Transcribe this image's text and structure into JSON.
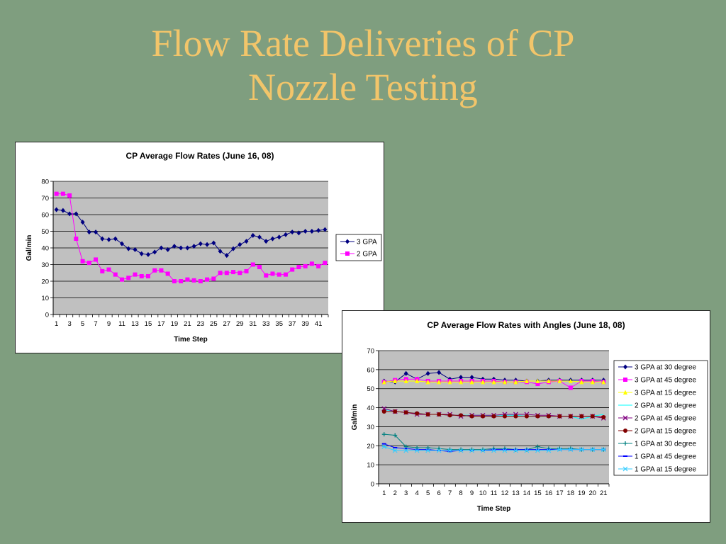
{
  "slide": {
    "title_line1": "Flow Rate Deliveries of CP",
    "title_line2": "Nozzle Testing"
  },
  "chart_data": [
    {
      "type": "line",
      "title": "CP Average Flow Rates (June 16, 08)",
      "xlabel": "Time Step",
      "ylabel": "Gal/min",
      "ylim": [
        0,
        80
      ],
      "yticks": [
        0,
        10,
        20,
        30,
        40,
        50,
        60,
        70,
        80
      ],
      "x": [
        1,
        2,
        3,
        4,
        5,
        6,
        7,
        8,
        9,
        10,
        11,
        12,
        13,
        14,
        15,
        16,
        17,
        18,
        19,
        20,
        21,
        22,
        23,
        24,
        25,
        26,
        27,
        28,
        29,
        30,
        31,
        32,
        33,
        34,
        35,
        36,
        37,
        38,
        39,
        40,
        41,
        42
      ],
      "xtick_labels": [
        "1",
        "3",
        "5",
        "7",
        "9",
        "11",
        "13",
        "15",
        "17",
        "19",
        "21",
        "23",
        "25",
        "27",
        "29",
        "31",
        "33",
        "35",
        "37",
        "39",
        "41"
      ],
      "grid": true,
      "legend_position": "right",
      "series": [
        {
          "name": "3 GPA",
          "color": "#000080",
          "marker": "diamond",
          "values": [
            63,
            62.5,
            60.5,
            60.5,
            55.5,
            49.5,
            49.5,
            45.5,
            45,
            45.5,
            42.5,
            39.5,
            39,
            36.5,
            36,
            37.5,
            40,
            39,
            41,
            40,
            40,
            41,
            42.5,
            42,
            43,
            38,
            35.5,
            39.5,
            42,
            44,
            47.5,
            46.5,
            44,
            45.5,
            46.5,
            48,
            49.5,
            49,
            50,
            50,
            50.5,
            51
          ]
        },
        {
          "name": "2 GPA",
          "color": "#ff00ff",
          "marker": "square",
          "values": [
            72.5,
            72.5,
            71.5,
            45.5,
            32,
            31,
            33,
            26,
            27,
            24,
            21,
            22,
            24,
            23,
            23,
            26.5,
            26.5,
            24.5,
            20,
            20,
            21,
            20.5,
            20,
            21,
            21.5,
            25,
            25,
            25.5,
            25,
            26,
            30,
            28.5,
            23.5,
            24.5,
            24,
            24,
            27,
            28.5,
            29,
            30.5,
            29,
            31
          ]
        }
      ]
    },
    {
      "type": "line",
      "title": "CP Average Flow Rates with Angles (June 18, 08)",
      "xlabel": "Time Step",
      "ylabel": "Gal/min",
      "ylim": [
        0,
        70
      ],
      "yticks": [
        0,
        10,
        20,
        30,
        40,
        50,
        60,
        70
      ],
      "x": [
        1,
        2,
        3,
        4,
        5,
        6,
        7,
        8,
        9,
        10,
        11,
        12,
        13,
        14,
        15,
        16,
        17,
        18,
        19,
        20,
        21
      ],
      "xtick_labels": [
        "1",
        "2",
        "3",
        "4",
        "5",
        "6",
        "7",
        "8",
        "9",
        "10",
        "11",
        "12",
        "13",
        "14",
        "15",
        "16",
        "17",
        "18",
        "19",
        "20",
        "21"
      ],
      "grid": true,
      "legend_position": "right",
      "series": [
        {
          "name": "3 GPA at 30 degree",
          "color": "#000080",
          "marker": "diamond",
          "values": [
            54,
            53.5,
            58,
            55,
            58,
            58.5,
            55,
            56,
            56,
            55,
            55,
            54.5,
            54.5,
            54,
            54,
            54.5,
            54.5,
            54.5,
            54.5,
            54.5,
            54.5
          ]
        },
        {
          "name": "3 GPA at 45 degree",
          "color": "#ff00ff",
          "marker": "square",
          "values": [
            53.5,
            54.5,
            55,
            55,
            54,
            54,
            54,
            54,
            54,
            54,
            54,
            53.5,
            53.5,
            53.5,
            52.5,
            53.5,
            54,
            50.5,
            54,
            54,
            53.5
          ]
        },
        {
          "name": "3 GPA at 15 degree",
          "color": "#ffff00",
          "marker": "triangle",
          "values": [
            53.5,
            54,
            54,
            54,
            53.5,
            53.5,
            53.5,
            53.5,
            53.5,
            53.5,
            53.5,
            53.5,
            53.5,
            54,
            54,
            54,
            54,
            54,
            53.5,
            53.5,
            53.5
          ]
        },
        {
          "name": "2 GPA at 30 degree",
          "color": "#00ffff",
          "marker": "none",
          "values": [
            39,
            38,
            37.5,
            37,
            36.5,
            36.5,
            36,
            36,
            36,
            36,
            35.5,
            36,
            36,
            35.5,
            35.5,
            35.5,
            35.5,
            35.5,
            34,
            35.5,
            36.5
          ]
        },
        {
          "name": "2 GPA at 45 degree",
          "color": "#800080",
          "marker": "x",
          "values": [
            39.5,
            38,
            37.5,
            36.5,
            36.5,
            36.5,
            36.5,
            35.5,
            36,
            36,
            36,
            36.5,
            36.5,
            36.5,
            36,
            36,
            35.5,
            35.5,
            35.5,
            35.5,
            34.5
          ]
        },
        {
          "name": "2 GPA at 15 degree",
          "color": "#800000",
          "marker": "circle",
          "values": [
            38,
            38,
            37.5,
            37,
            36.5,
            36.5,
            36,
            36,
            35.5,
            35.5,
            35.5,
            35.5,
            35.5,
            35.5,
            35.5,
            35.5,
            35.5,
            35.5,
            35.5,
            35.5,
            35
          ]
        },
        {
          "name": "1 GPA at 30 degree",
          "color": "#008080",
          "marker": "plus",
          "values": [
            26,
            25.5,
            19.5,
            19,
            19,
            18.5,
            18,
            18,
            18,
            18,
            18.5,
            18.5,
            18,
            18,
            19.5,
            18.5,
            18.5,
            18.5,
            18,
            18,
            18
          ]
        },
        {
          "name": "1 GPA at 45 degree",
          "color": "#0000ff",
          "marker": "dash",
          "values": [
            21,
            19,
            18.5,
            18,
            18,
            17.5,
            17,
            17.5,
            17.5,
            17.5,
            18,
            18,
            18,
            18,
            18,
            18,
            18,
            18,
            18,
            18,
            18
          ]
        },
        {
          "name": "1 GPA at 15 degree",
          "color": "#33ccff",
          "marker": "star",
          "values": [
            19.5,
            17.5,
            17.5,
            17.5,
            17.5,
            17.5,
            17.5,
            17.5,
            17.5,
            17.5,
            17.5,
            17.5,
            17.5,
            17.5,
            17.5,
            17.5,
            18,
            18,
            18,
            18,
            18
          ]
        }
      ]
    }
  ]
}
